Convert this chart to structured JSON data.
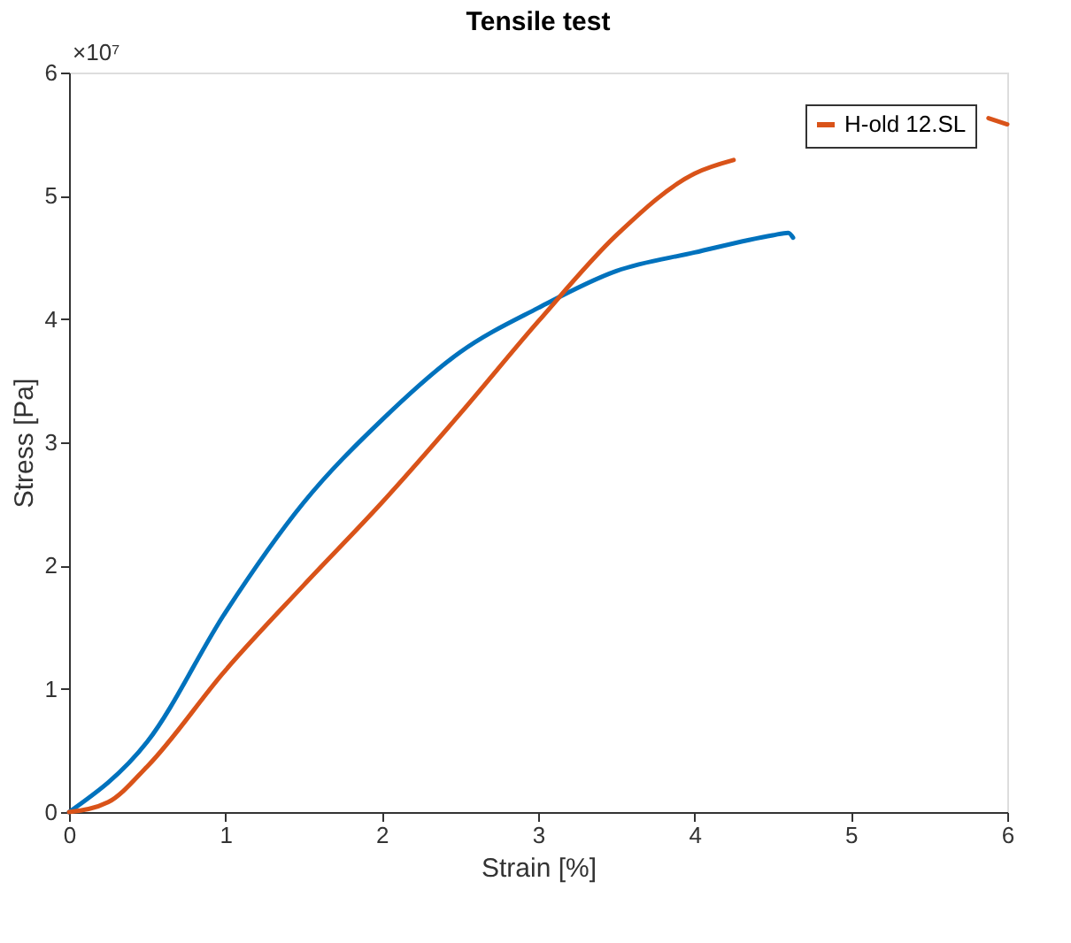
{
  "chart_data": {
    "type": "line",
    "title": "Tensile test",
    "xlabel": "Strain [%]",
    "ylabel": "Stress [Pa]",
    "annotations": [
      "×10⁷"
    ],
    "xlim": [
      0,
      6
    ],
    "xticks": [
      0,
      1,
      2,
      3,
      4,
      5,
      6
    ],
    "ylim": [
      0,
      6
    ],
    "yticks": [
      0,
      1,
      2,
      3,
      4,
      5,
      6
    ],
    "grid": false,
    "legend": "top right",
    "line_style": "solid",
    "marker": "none",
    "series": [
      {
        "color": "#0072bd",
        "x": [
          0,
          0.5,
          1,
          1.5,
          2,
          2.5,
          3,
          3.5,
          4,
          4.5,
          4.6,
          4.63
        ],
        "values": [
          0,
          0.57,
          1.62,
          2.51,
          3.18,
          3.73,
          4.09,
          4.39,
          4.54,
          4.68,
          4.7,
          4.66
        ]
      },
      {
        "name": "H-old 12.SL",
        "color": "#d95319",
        "x": [
          0,
          0.25,
          0.5,
          1,
          1.5,
          2,
          2.5,
          3,
          3.5,
          4,
          4.25,
          5,
          5.88,
          6
        ],
        "values": [
          0,
          0.08,
          0.37,
          1.15,
          1.84,
          2.51,
          3.23,
          3.98,
          4.68,
          5.18,
          5.29,
          null,
          5.63,
          5.58
        ]
      }
    ]
  }
}
